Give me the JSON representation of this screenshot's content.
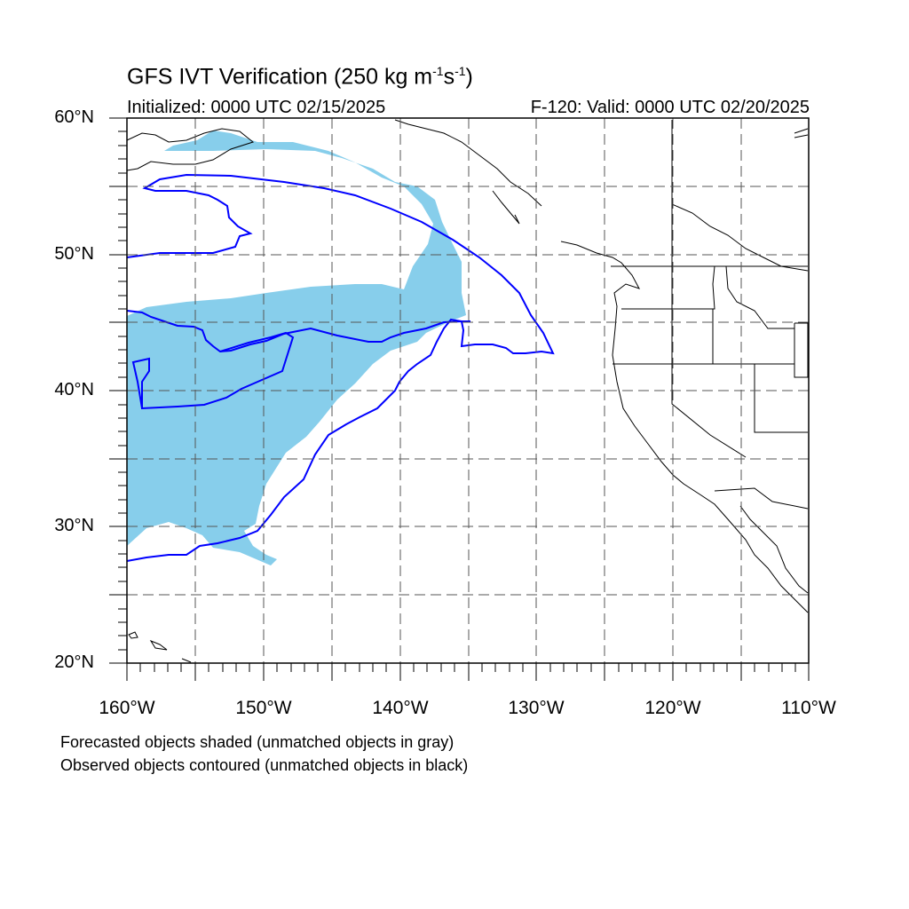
{
  "title": {
    "main": "GFS IVT Verification (250 kg m",
    "sup1": "-1",
    "mid": "s",
    "sup2": "-1",
    "end": ")"
  },
  "initialized": "Initialized: 0000 UTC 02/15/2025",
  "valid": "F-120: Valid: 0000 UTC 02/20/2025",
  "lat_labels": [
    "60°N",
    "50°N",
    "40°N",
    "30°N",
    "20°N"
  ],
  "lon_labels": [
    "160°W",
    "150°W",
    "140°W",
    "130°W",
    "120°W",
    "110°W"
  ],
  "legend": {
    "line1": "Forecasted objects shaded (unmatched objects in gray)",
    "line2": "Observed objects contoured (unmatched objects in black)"
  },
  "map": {
    "lon_range": [
      -160,
      -110
    ],
    "lat_range": [
      20,
      60
    ],
    "gridline_spacing_deg": 5,
    "colors": {
      "forecast_fill": "#87ceeb",
      "observed_contour": "#0000ff",
      "coast": "#000000",
      "grid": "#555555"
    }
  }
}
